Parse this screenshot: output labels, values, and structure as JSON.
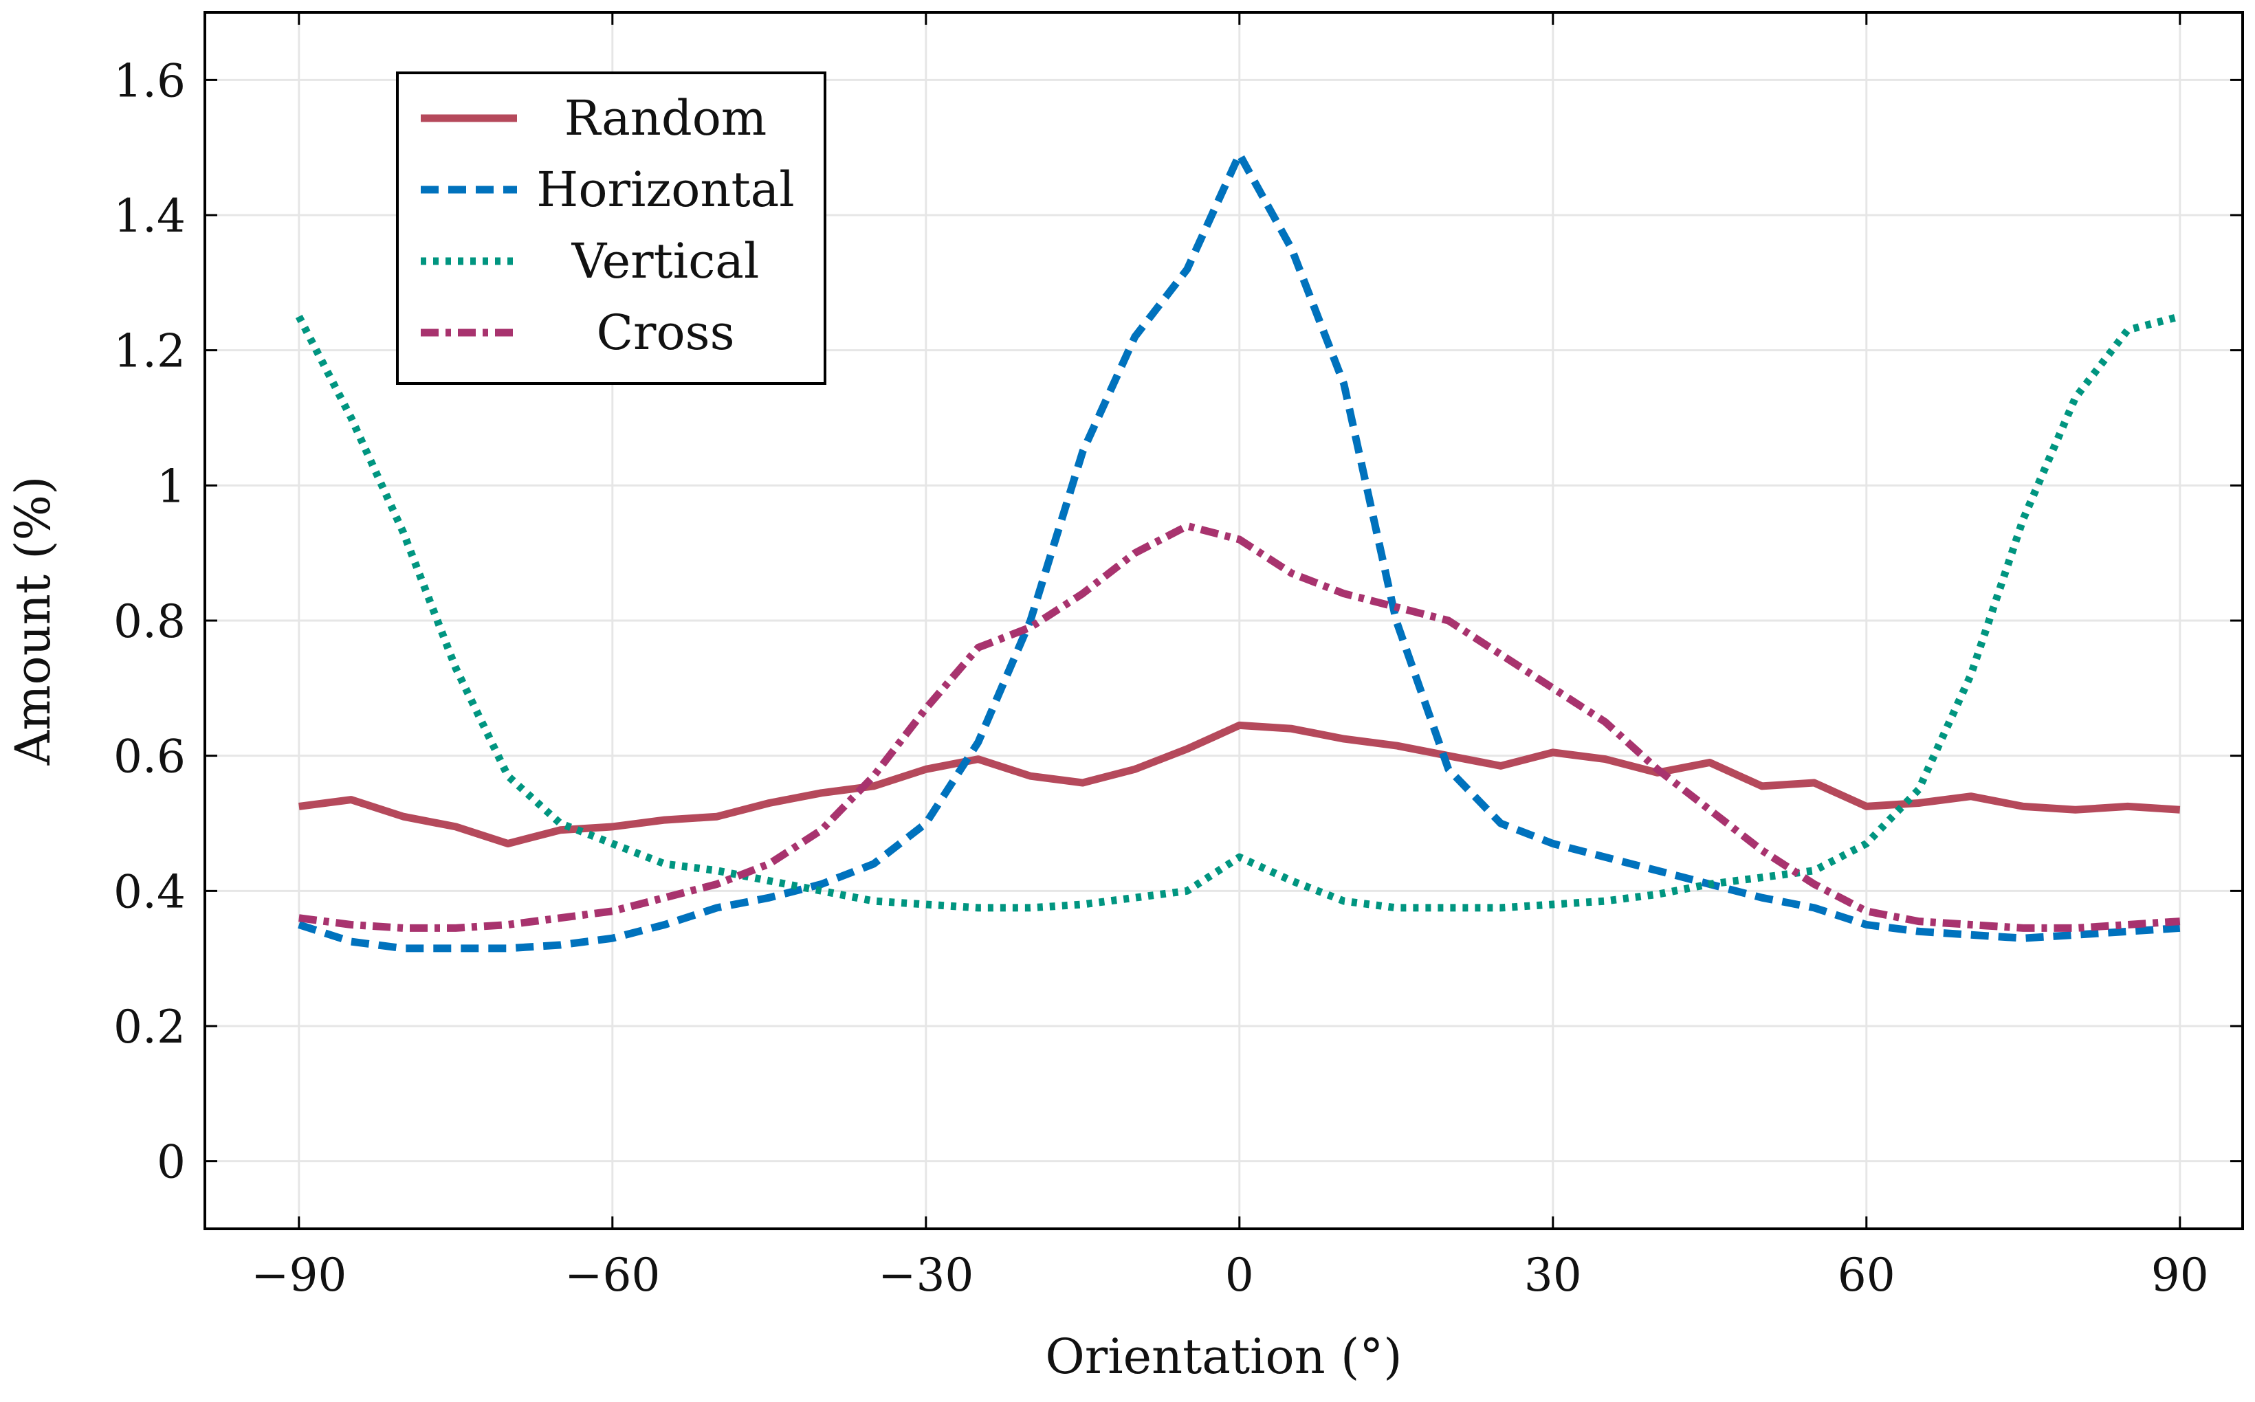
{
  "chart_data": {
    "type": "line",
    "title": "",
    "xlabel": "Orientation (°)",
    "ylabel": "Amount (%)",
    "xlim": [
      -99,
      96
    ],
    "ylim": [
      -0.1,
      1.7
    ],
    "xticks": [
      -90,
      -60,
      -30,
      0,
      30,
      60,
      90
    ],
    "xtick_labels": [
      "−90",
      "−60",
      "−30",
      "0",
      "30",
      "60",
      "90"
    ],
    "yticks": [
      0,
      0.2,
      0.4,
      0.6,
      0.8,
      1,
      1.2,
      1.4,
      1.6
    ],
    "ytick_labels": [
      "0",
      "0.2",
      "0.4",
      "0.6",
      "0.8",
      "1",
      "1.2",
      "1.4",
      "1.6"
    ],
    "grid": true,
    "legend_position": "top-left",
    "x": [
      -90,
      -85,
      -80,
      -75,
      -70,
      -65,
      -60,
      -55,
      -50,
      -45,
      -40,
      -35,
      -30,
      -25,
      -20,
      -15,
      -10,
      -5,
      0,
      5,
      10,
      15,
      20,
      25,
      30,
      35,
      40,
      45,
      50,
      55,
      60,
      65,
      70,
      75,
      80,
      85,
      90
    ],
    "series": [
      {
        "name": "Random",
        "color": "#b5495b",
        "style": "solid",
        "values": [
          0.525,
          0.535,
          0.51,
          0.495,
          0.47,
          0.49,
          0.495,
          0.505,
          0.51,
          0.53,
          0.545,
          0.555,
          0.58,
          0.595,
          0.57,
          0.56,
          0.58,
          0.61,
          0.645,
          0.64,
          0.625,
          0.615,
          0.6,
          0.585,
          0.605,
          0.595,
          0.575,
          0.59,
          0.555,
          0.56,
          0.525,
          0.53,
          0.54,
          0.525,
          0.52,
          0.525,
          0.52
        ]
      },
      {
        "name": "Horizontal",
        "color": "#0072bd",
        "style": "dashed",
        "values": [
          0.35,
          0.325,
          0.315,
          0.315,
          0.315,
          0.32,
          0.33,
          0.35,
          0.375,
          0.39,
          0.41,
          0.44,
          0.5,
          0.62,
          0.8,
          1.05,
          1.22,
          1.32,
          1.49,
          1.35,
          1.15,
          0.8,
          0.58,
          0.5,
          0.47,
          0.45,
          0.43,
          0.41,
          0.39,
          0.375,
          0.35,
          0.34,
          0.335,
          0.33,
          0.335,
          0.34,
          0.345
        ]
      },
      {
        "name": "Vertical",
        "color": "#009580",
        "style": "dotted",
        "values": [
          1.25,
          1.1,
          0.93,
          0.73,
          0.57,
          0.5,
          0.47,
          0.44,
          0.43,
          0.415,
          0.4,
          0.385,
          0.38,
          0.375,
          0.375,
          0.38,
          0.39,
          0.4,
          0.45,
          0.415,
          0.385,
          0.375,
          0.375,
          0.375,
          0.38,
          0.385,
          0.395,
          0.41,
          0.42,
          0.43,
          0.47,
          0.55,
          0.72,
          0.95,
          1.13,
          1.23,
          1.25
        ]
      },
      {
        "name": "Cross",
        "color": "#a8336e",
        "style": "dashdot",
        "values": [
          0.36,
          0.35,
          0.345,
          0.345,
          0.35,
          0.36,
          0.37,
          0.39,
          0.41,
          0.44,
          0.49,
          0.57,
          0.67,
          0.76,
          0.79,
          0.84,
          0.9,
          0.94,
          0.92,
          0.87,
          0.84,
          0.82,
          0.8,
          0.75,
          0.7,
          0.65,
          0.58,
          0.52,
          0.46,
          0.41,
          0.37,
          0.355,
          0.35,
          0.345,
          0.345,
          0.35,
          0.355
        ]
      }
    ]
  }
}
